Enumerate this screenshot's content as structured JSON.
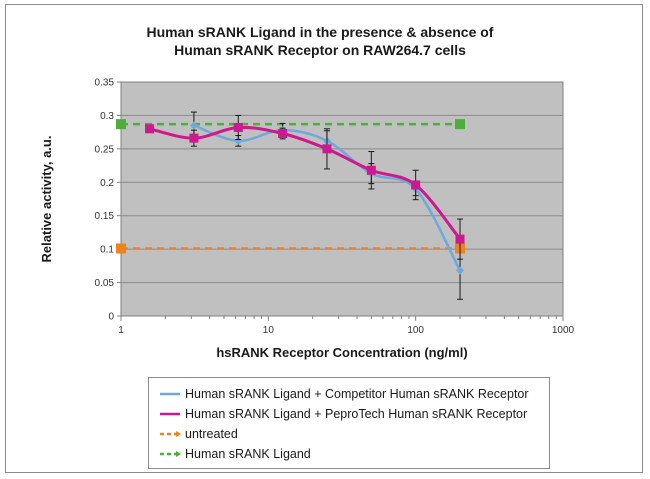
{
  "chart_data": {
    "type": "line",
    "title_lines": [
      "Human sRANK Ligand in the presence & absence of",
      "Human sRANK Receptor on RAW264.7 cells"
    ],
    "xlabel": "hsRANK Receptor Concentration (ng/ml)",
    "ylabel": "Relative activity, a.u.",
    "x_scale": "log",
    "xlim": [
      1,
      1000
    ],
    "ylim": [
      0,
      0.35
    ],
    "x_ticks": [
      {
        "value": 1,
        "label": "1"
      },
      {
        "value": 10,
        "label": "10"
      },
      {
        "value": 100,
        "label": "100"
      },
      {
        "value": 1000,
        "label": "1000"
      }
    ],
    "y_ticks": [
      {
        "value": 0,
        "label": "0"
      },
      {
        "value": 0.05,
        "label": "0.05"
      },
      {
        "value": 0.1,
        "label": "0.1"
      },
      {
        "value": 0.15,
        "label": "0.15"
      },
      {
        "value": 0.2,
        "label": "0.2"
      },
      {
        "value": 0.25,
        "label": "0.25"
      },
      {
        "value": 0.3,
        "label": "0.3"
      },
      {
        "value": 0.35,
        "label": "0.35"
      }
    ],
    "grid": "horizontal",
    "plot_background": "#c0c0c0",
    "legend_position": "bottom",
    "series": [
      {
        "name": "Human sRANK Ligand + Competitor Human sRANK Receptor",
        "color": "#6fa8dc",
        "marker": "diamond",
        "style": "solid-smooth",
        "x": [
          3.125,
          6.25,
          12.5,
          25,
          50,
          100,
          200
        ],
        "y": [
          0.285,
          0.262,
          0.278,
          0.262,
          0.213,
          0.19,
          0.068
        ],
        "err": [
          0.02,
          0.008,
          0.01,
          0.015,
          0.015,
          0.01,
          0.043
        ]
      },
      {
        "name": "Human sRANK Ligand + PeproTech Human sRANK Receptor",
        "color": "#cc1a8e",
        "marker": "square",
        "style": "solid-smooth",
        "x": [
          1.5625,
          3.125,
          6.25,
          12.5,
          25,
          50,
          100,
          200
        ],
        "y": [
          0.28,
          0.266,
          0.282,
          0.273,
          0.25,
          0.218,
          0.196,
          0.115
        ],
        "err": [
          0,
          0.012,
          0.018,
          0.008,
          0.03,
          0.028,
          0.022,
          0.03
        ]
      },
      {
        "name": "untreated",
        "color": "#f0821e",
        "marker": "square",
        "style": "dashed",
        "x": [
          1,
          200
        ],
        "y": [
          0.101,
          0.101
        ],
        "err": [
          0,
          0
        ]
      },
      {
        "name": "Human sRANK Ligand",
        "color": "#4caf3a",
        "marker": "square",
        "style": "dashed",
        "x": [
          1,
          200
        ],
        "y": [
          0.287,
          0.287
        ],
        "err": [
          0,
          0
        ]
      }
    ]
  }
}
